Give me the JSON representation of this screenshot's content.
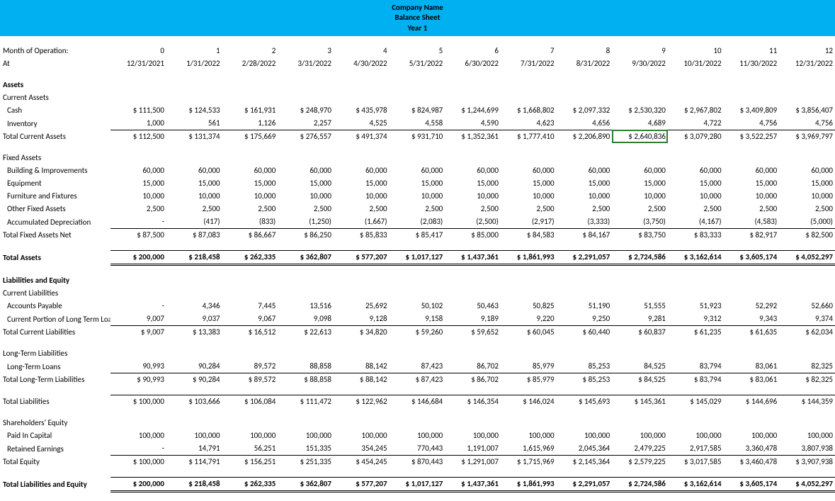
{
  "header": {
    "company": "Company Name",
    "title": "Balance Sheet",
    "period": "Year 1",
    "bg_color": "#00b0f0"
  },
  "months_label": "Month of Operation:",
  "at_label": "At",
  "months": [
    "0",
    "1",
    "2",
    "3",
    "4",
    "5",
    "6",
    "7",
    "8",
    "9",
    "10",
    "11",
    "12"
  ],
  "dates": [
    "12/31/2021",
    "1/31/2022",
    "2/28/2022",
    "3/31/2022",
    "4/30/2022",
    "5/31/2022",
    "6/30/2022",
    "7/31/2022",
    "8/31/2022",
    "9/30/2022",
    "10/31/2022",
    "11/30/2022",
    "12/31/2022"
  ],
  "highlight": {
    "row": "tca",
    "col": 9
  },
  "sections": {
    "assets": "Assets",
    "current_assets": "Current Assets",
    "cash": "Cash",
    "inventory": "Inventory",
    "tca": "Total Current Assets",
    "fixed_assets": "Fixed Assets",
    "building": "Building & Improvements",
    "equipment": "Equipment",
    "furniture": "Furniture and Fixtures",
    "other_fixed": "Other Fixed Assets",
    "acc_dep": "Accumulated Depreciation",
    "tfan": "Total Fixed Assets Net",
    "total_assets": "Total Assets",
    "liab_equity": "Liabilities and Equity",
    "current_liab": "Current Liabilities",
    "ap": "Accounts Payable",
    "cpltl": "Current Portion of Long Term Loans",
    "tcl": "Total Current Liabilities",
    "ltl": "Long-Term Liabilities",
    "ltloans": "Long-Term Loans",
    "tltl": "Total Long-Term Liabilities",
    "total_liab": "Total Liabilities",
    "she": "Shareholders' Equity",
    "pic": "Paid In Capital",
    "re": "Retained Earnings",
    "te": "Total Equity",
    "tle": "Total Liabilities and Equity"
  },
  "data": {
    "cash": [
      "$   111,500",
      "$ 124,533",
      "$ 161,931",
      "$ 248,970",
      "$ 435,978",
      "$    824,987",
      "$ 1,244,699",
      "$ 1,668,802",
      "$ 2,097,332",
      "$ 2,530,320",
      "$ 2,967,802",
      "$ 3,409,809",
      "$ 3,856,407"
    ],
    "inventory": [
      "1,000",
      "561",
      "1,126",
      "2,257",
      "4,525",
      "4,558",
      "4,590",
      "4,623",
      "4,656",
      "4,689",
      "4,722",
      "4,756",
      "4,756"
    ],
    "tca": [
      "$   112,500",
      "$ 131,374",
      "$ 175,669",
      "$ 276,557",
      "$ 491,374",
      "$    931,710",
      "$ 1,352,361",
      "$ 1,777,410",
      "$ 2,206,890",
      "$ 2,640,836",
      "$ 3,079,280",
      "$ 3,522,257",
      "$ 3,969,797"
    ],
    "building": [
      "60,000",
      "60,000",
      "60,000",
      "60,000",
      "60,000",
      "60,000",
      "60,000",
      "60,000",
      "60,000",
      "60,000",
      "60,000",
      "60,000",
      "60,000"
    ],
    "equipment": [
      "15,000",
      "15,000",
      "15,000",
      "15,000",
      "15,000",
      "15,000",
      "15,000",
      "15,000",
      "15,000",
      "15,000",
      "15,000",
      "15,000",
      "15,000"
    ],
    "furniture": [
      "10,000",
      "10,000",
      "10,000",
      "10,000",
      "10,000",
      "10,000",
      "10,000",
      "10,000",
      "10,000",
      "10,000",
      "10,000",
      "10,000",
      "10,000"
    ],
    "other_fixed": [
      "2,500",
      "2,500",
      "2,500",
      "2,500",
      "2,500",
      "2,500",
      "2,500",
      "2,500",
      "2,500",
      "2,500",
      "2,500",
      "2,500",
      "2,500"
    ],
    "acc_dep": [
      "-",
      "(417)",
      "(833)",
      "(1,250)",
      "(1,667)",
      "(2,083)",
      "(2,500)",
      "(2,917)",
      "(3,333)",
      "(3,750)",
      "(4,167)",
      "(4,583)",
      "(5,000)"
    ],
    "tfan": [
      "$     87,500",
      "$   87,083",
      "$   86,667",
      "$   86,250",
      "$   85,833",
      "$      85,417",
      "$      85,000",
      "$      84,583",
      "$      84,167",
      "$      83,750",
      "$      83,333",
      "$      82,917",
      "$      82,500"
    ],
    "total_assets": [
      "$   200,000",
      "$ 218,458",
      "$ 262,335",
      "$ 362,807",
      "$ 577,207",
      "$ 1,017,127",
      "$ 1,437,361",
      "$ 1,861,993",
      "$ 2,291,057",
      "$ 2,724,586",
      "$ 3,162,614",
      "$ 3,605,174",
      "$ 4,052,297"
    ],
    "ap": [
      "-",
      "4,346",
      "7,445",
      "13,516",
      "25,692",
      "50,102",
      "50,463",
      "50,825",
      "51,190",
      "51,555",
      "51,923",
      "52,292",
      "52,660"
    ],
    "cpltl": [
      "9,007",
      "9,037",
      "9,067",
      "9,098",
      "9,128",
      "9,158",
      "9,189",
      "9,220",
      "9,250",
      "9,281",
      "9,312",
      "9,343",
      "9,374"
    ],
    "tcl": [
      "$       9,007",
      "$   13,383",
      "$   16,512",
      "$   22,613",
      "$   34,820",
      "$      59,260",
      "$      59,652",
      "$      60,045",
      "$      60,440",
      "$      60,837",
      "$      61,235",
      "$      61,635",
      "$      62,034"
    ],
    "ltloans": [
      "90,993",
      "90,284",
      "89,572",
      "88,858",
      "88,142",
      "87,423",
      "86,702",
      "85,979",
      "85,253",
      "84,525",
      "83,794",
      "83,061",
      "82,325"
    ],
    "tltl": [
      "$     90,993",
      "$   90,284",
      "$   89,572",
      "$   88,858",
      "$   88,142",
      "$      87,423",
      "$      86,702",
      "$      85,979",
      "$      85,253",
      "$      84,525",
      "$      83,794",
      "$      83,061",
      "$      82,325"
    ],
    "total_liab": [
      "$   100,000",
      "$ 103,666",
      "$ 106,084",
      "$ 111,472",
      "$ 122,962",
      "$    146,684",
      "$    146,354",
      "$    146,024",
      "$    145,693",
      "$    145,361",
      "$    145,029",
      "$    144,696",
      "$    144,359"
    ],
    "pic": [
      "100,000",
      "100,000",
      "100,000",
      "100,000",
      "100,000",
      "100,000",
      "100,000",
      "100,000",
      "100,000",
      "100,000",
      "100,000",
      "100,000",
      "100,000"
    ],
    "re": [
      "-",
      "14,791",
      "56,251",
      "151,335",
      "354,245",
      "770,443",
      "1,191,007",
      "1,615,969",
      "2,045,364",
      "2,479,225",
      "2,917,585",
      "3,360,478",
      "3,807,938"
    ],
    "te": [
      "$   100,000",
      "$ 114,791",
      "$ 156,251",
      "$ 251,335",
      "$ 454,245",
      "$    870,443",
      "$ 1,291,007",
      "$ 1,715,969",
      "$ 2,145,364",
      "$ 2,579,225",
      "$ 3,017,585",
      "$ 3,460,478",
      "$ 3,907,938"
    ],
    "tle": [
      "$   200,000",
      "$ 218,458",
      "$ 262,335",
      "$ 362,807",
      "$ 577,207",
      "$ 1,017,127",
      "$ 1,437,361",
      "$ 1,861,993",
      "$ 2,291,057",
      "$ 2,724,586",
      "$ 3,162,614",
      "$ 3,605,174",
      "$ 4,052,297"
    ]
  }
}
